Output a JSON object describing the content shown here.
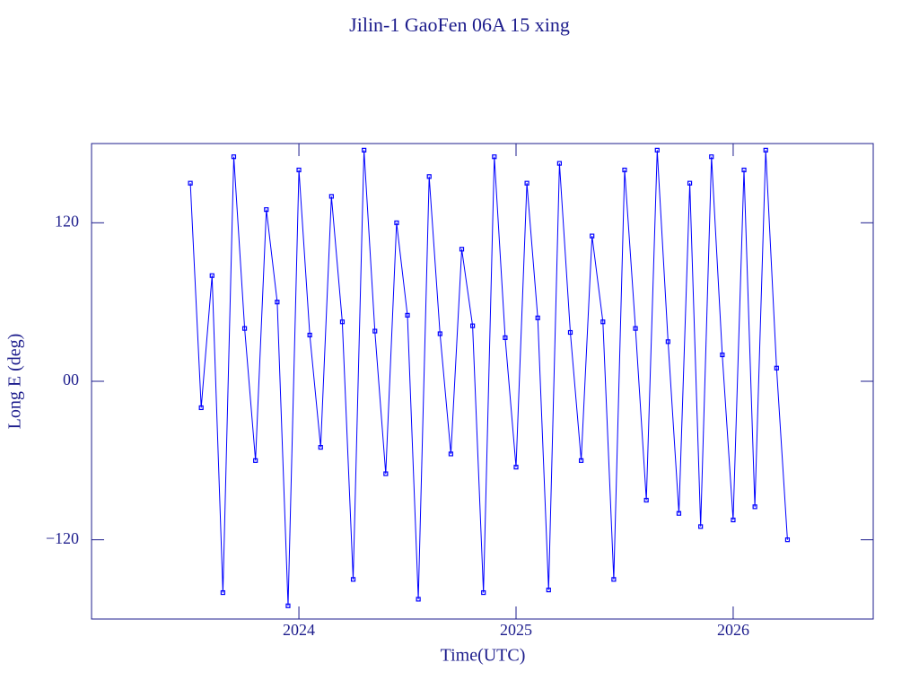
{
  "chart_data": {
    "type": "line",
    "title": "Jilin-1 GaoFen 06A 15 xing",
    "x_label": "Time(UTC)",
    "y_label": "Long E (deg)",
    "color": "#0000ff",
    "axis_color": "#1c1c8c",
    "xlim": [
      2023.045,
      2026.645
    ],
    "ylim": [
      -180,
      180
    ],
    "xticks": [
      2024,
      2025,
      2026
    ],
    "yticks": [
      {
        "value": -120,
        "label": "−120"
      },
      {
        "value": 0,
        "label": "00"
      },
      120
    ],
    "x": [
      2023.5,
      2023.55,
      2023.6,
      2023.65,
      2023.7,
      2023.75,
      2023.8,
      2023.85,
      2023.9,
      2023.95,
      2024.0,
      2024.05,
      2024.1,
      2024.15,
      2024.2,
      2024.25,
      2024.3,
      2024.35,
      2024.4,
      2024.45,
      2024.5,
      2024.55,
      2024.6,
      2024.65,
      2024.7,
      2024.75,
      2024.8,
      2024.85,
      2024.9,
      2024.95,
      2025.0,
      2025.05,
      2025.1,
      2025.15,
      2025.2,
      2025.25,
      2025.3,
      2025.35,
      2025.4,
      2025.45,
      2025.5,
      2025.55,
      2025.6,
      2025.65,
      2025.7,
      2025.75,
      2025.8,
      2025.85,
      2025.9,
      2025.95,
      2026.0,
      2026.05,
      2026.1,
      2026.15,
      2026.2,
      2026.25
    ],
    "values": [
      150,
      -20,
      80,
      -160,
      170,
      40,
      -60,
      130,
      60,
      -170,
      160,
      35,
      -50,
      140,
      45,
      -150,
      175,
      38,
      -70,
      120,
      50,
      -165,
      155,
      36,
      -55,
      100,
      42,
      -160,
      170,
      33,
      -65,
      150,
      48,
      -158,
      165,
      37,
      -60,
      110,
      45,
      -150,
      160,
      40,
      -90,
      175,
      30,
      -100,
      150,
      -110,
      170,
      20,
      -105,
      160,
      -95,
      175,
      10,
      -120
    ]
  }
}
